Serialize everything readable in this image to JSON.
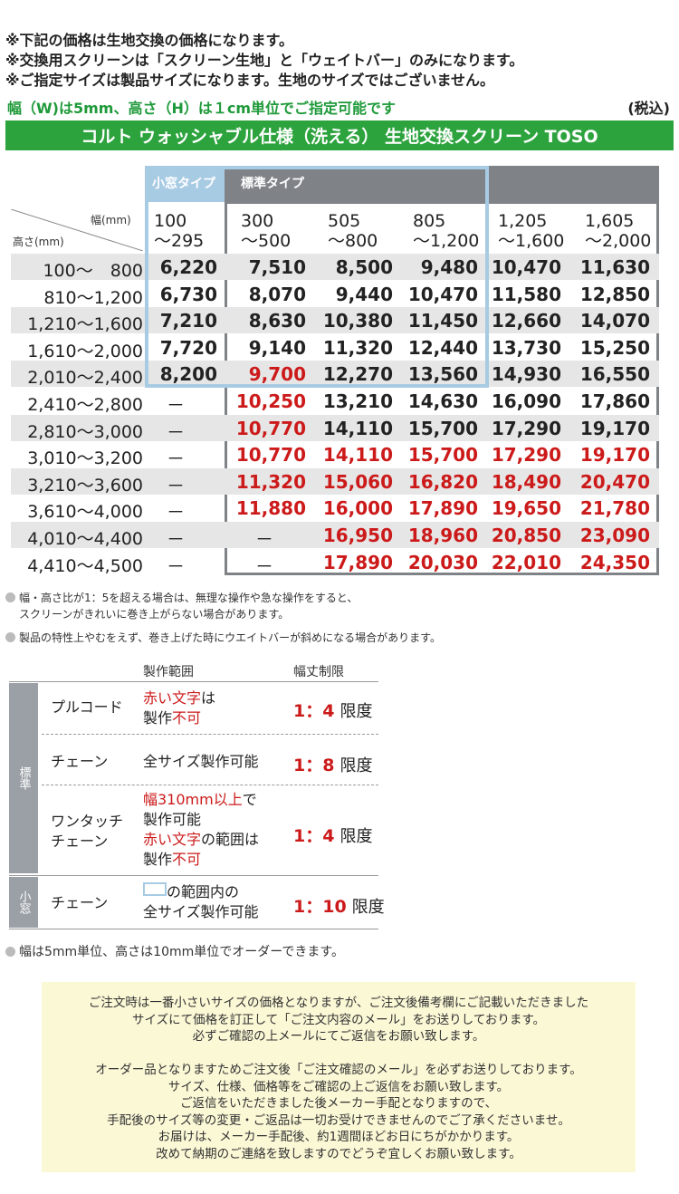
{
  "notes": [
    "※下記の価格は生地交換の価格になります。",
    "※交換用スクリーンは「スクリーン生地」と「ウェイトバー」のみになります。",
    "※ご指定サイズは製品サイズになります。生地のサイズではございません。"
  ],
  "spec_note": "幅（W)は5mm、高さ（H）は１cm単位でご指定可能です",
  "tax_label": "(税込)",
  "title": "コルト ウォッシャブル仕様（洗える） 生地交換スクリーン TOSO",
  "table": {
    "small_window_label": "小窓タイプ",
    "standard_label": "標準タイプ",
    "corner_width": "幅(mm)",
    "corner_height": "高さ(mm)",
    "width_ranges": [
      {
        "top": "100",
        "bottom": "～295"
      },
      {
        "top": "300",
        "bottom": "～500"
      },
      {
        "top": "505",
        "bottom": "～800"
      },
      {
        "top": "805",
        "bottom": "～1,200"
      },
      {
        "top": "1,205",
        "bottom": "～1,600"
      },
      {
        "top": "1,605",
        "bottom": "～2,000"
      }
    ],
    "rows": [
      {
        "height": "100～　800",
        "prices": [
          "6,220",
          "7,510",
          "8,500",
          "9,480",
          "10,470",
          "11,630"
        ],
        "red": [
          false,
          false,
          false,
          false,
          false,
          false
        ]
      },
      {
        "height": "810～1,200",
        "prices": [
          "6,730",
          "8,070",
          "9,440",
          "10,470",
          "11,580",
          "12,850"
        ],
        "red": [
          false,
          false,
          false,
          false,
          false,
          false
        ]
      },
      {
        "height": "1,210～1,600",
        "prices": [
          "7,210",
          "8,630",
          "10,380",
          "11,450",
          "12,660",
          "14,070"
        ],
        "red": [
          false,
          false,
          false,
          false,
          false,
          false
        ]
      },
      {
        "height": "1,610～2,000",
        "prices": [
          "7,720",
          "9,140",
          "11,320",
          "12,440",
          "13,730",
          "15,250"
        ],
        "red": [
          false,
          false,
          false,
          false,
          false,
          false
        ]
      },
      {
        "height": "2,010～2,400",
        "prices": [
          "8,200",
          "9,700",
          "12,270",
          "13,560",
          "14,930",
          "16,550"
        ],
        "red": [
          false,
          true,
          false,
          false,
          false,
          false
        ]
      },
      {
        "height": "2,410～2,800",
        "prices": [
          "－",
          "10,250",
          "13,210",
          "14,630",
          "16,090",
          "17,860"
        ],
        "red": [
          false,
          true,
          false,
          false,
          false,
          false
        ]
      },
      {
        "height": "2,810～3,000",
        "prices": [
          "－",
          "10,770",
          "14,110",
          "15,700",
          "17,290",
          "19,170"
        ],
        "red": [
          false,
          true,
          false,
          false,
          false,
          false
        ]
      },
      {
        "height": "3,010～3,200",
        "prices": [
          "－",
          "10,770",
          "14,110",
          "15,700",
          "17,290",
          "19,170"
        ],
        "red": [
          false,
          true,
          true,
          true,
          true,
          true
        ]
      },
      {
        "height": "3,210～3,600",
        "prices": [
          "－",
          "11,320",
          "15,060",
          "16,820",
          "18,490",
          "20,470"
        ],
        "red": [
          false,
          true,
          true,
          true,
          true,
          true
        ]
      },
      {
        "height": "3,610～4,000",
        "prices": [
          "－",
          "11,880",
          "16,000",
          "17,890",
          "19,650",
          "21,780"
        ],
        "red": [
          false,
          true,
          true,
          true,
          true,
          true
        ]
      },
      {
        "height": "4,010～4,400",
        "prices": [
          "－",
          "－",
          "16,950",
          "18,960",
          "20,850",
          "23,090"
        ],
        "red": [
          false,
          false,
          true,
          true,
          true,
          true
        ]
      },
      {
        "height": "4,410～4,500",
        "prices": [
          "－",
          "－",
          "17,890",
          "20,030",
          "22,010",
          "24,350"
        ],
        "red": [
          false,
          false,
          true,
          true,
          true,
          true
        ]
      }
    ]
  },
  "footnotes": [
    "幅・高さ比が1：5を超える場合は、無理な操作や急な操作をすると、",
    "スクリーンがきれいに巻き上がらない場合があります。",
    "製品の特性上やむをえず、巻き上げた時にウエイトバーが斜めになる場合があります。"
  ],
  "ops": {
    "col_range": "製作範囲",
    "col_limit": "幅丈制限",
    "side_standard": "標準",
    "side_small": "小窓",
    "rows": [
      {
        "name": "プルコード",
        "range_a": "赤い文字",
        "range_b": "は",
        "range_c": "製作",
        "range_d": "不可",
        "ratio": "1：4",
        "limit": "限度"
      },
      {
        "name": "チェーン",
        "range_a": "全サイズ製作可能",
        "ratio": "1：8",
        "limit": "限度"
      },
      {
        "name_a": "ワンタッチ",
        "name_b": "チェーン",
        "range_a": "幅310mm以上",
        "range_b": "で",
        "range_c": "製作可能",
        "range_d": "赤い文字",
        "range_e": "の範囲は",
        "range_f": "製作",
        "range_g": "不可",
        "ratio": "1：4",
        "limit": "限度"
      },
      {
        "name": "チェーン",
        "range_a": "の範囲内の",
        "range_b": "全サイズ製作可能",
        "ratio": "1：10",
        "limit": "限度"
      }
    ]
  },
  "order_note": "幅は5mm単位、高さは10mm単位でオーダーできます。",
  "notice": [
    "ご注文時は一番小さいサイズの価格となりますが、ご注文後備考欄にご記載いただきました",
    "サイズにて価格を訂正して「ご注文内容のメール」をお送りしております。",
    "必ずご確認の上メールにてご返信をお願い致します。",
    "",
    "オーダー品となりますためご注文後「ご注文確認のメール」を必ずお送りしております。",
    "サイズ、仕様、価格等をご確認の上ご返信をお願い致します。",
    "ご返信をいただきました後メーカー手配となりますので、",
    "手配後のサイズ等の変更・ご返品は一切お受けできませんのでご了承くださいませ。",
    "お届けは、メーカー手配後、約1週間ほどお日にちがかかります。",
    "改めて納期のご連絡を致しますのでどうぞ宜しくお願い致します。"
  ]
}
